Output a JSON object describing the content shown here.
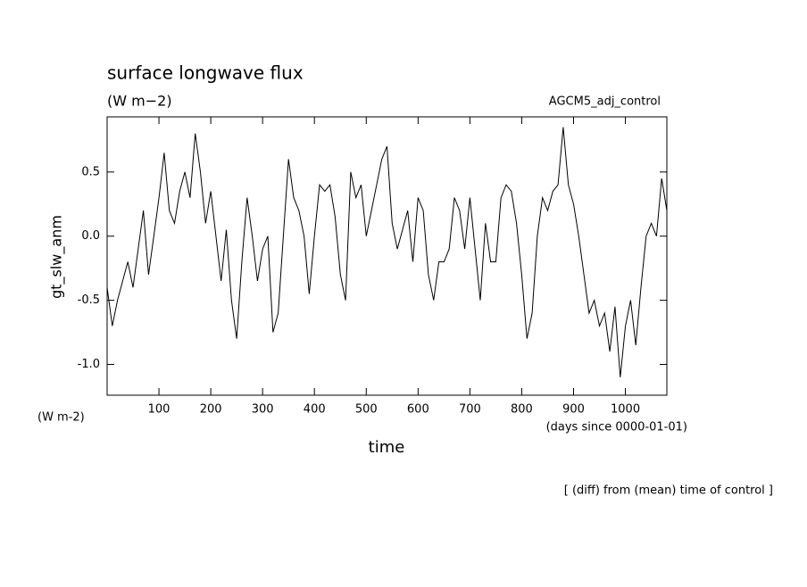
{
  "chart_data": {
    "type": "line",
    "title": "surface longwave flux",
    "subtitle": "(W m−2)",
    "annotation": "AGCM5_adj_control",
    "ylabel": "gt_slw_anm",
    "yunit": "(W m-2)",
    "xunit": "(days since 0000-01-01)",
    "xlabel": "time",
    "footer": "[ (diff) from (mean) time of control ]",
    "color": "#000000",
    "x": [
      0,
      10,
      20,
      30,
      40,
      50,
      60,
      70,
      80,
      90,
      100,
      110,
      120,
      130,
      140,
      150,
      160,
      170,
      180,
      190,
      200,
      210,
      220,
      230,
      240,
      250,
      260,
      270,
      280,
      290,
      300,
      310,
      320,
      330,
      340,
      350,
      360,
      370,
      380,
      390,
      400,
      410,
      420,
      430,
      440,
      450,
      460,
      470,
      480,
      490,
      500,
      510,
      520,
      530,
      540,
      550,
      560,
      570,
      580,
      590,
      600,
      610,
      620,
      630,
      640,
      650,
      660,
      670,
      680,
      690,
      700,
      710,
      720,
      730,
      740,
      750,
      760,
      770,
      780,
      790,
      800,
      810,
      820,
      830,
      840,
      850,
      860,
      870,
      880,
      890,
      900,
      910,
      920,
      930,
      940,
      950,
      960,
      970,
      980,
      990,
      1000,
      1010,
      1020,
      1030,
      1040,
      1050,
      1060,
      1070,
      1080
    ],
    "values": [
      -0.4,
      -0.7,
      -0.5,
      -0.35,
      -0.2,
      -0.4,
      -0.1,
      0.2,
      -0.3,
      0.0,
      0.3,
      0.65,
      0.2,
      0.1,
      0.35,
      0.5,
      0.3,
      0.8,
      0.5,
      0.1,
      0.35,
      0.0,
      -0.35,
      0.05,
      -0.5,
      -0.8,
      -0.2,
      0.3,
      0.0,
      -0.35,
      -0.1,
      0.0,
      -0.75,
      -0.6,
      0.0,
      0.6,
      0.3,
      0.2,
      0.0,
      -0.45,
      0.0,
      0.4,
      0.35,
      0.4,
      0.15,
      -0.3,
      -0.5,
      0.5,
      0.3,
      0.4,
      0.0,
      0.2,
      0.4,
      0.6,
      0.7,
      0.1,
      -0.1,
      0.05,
      0.2,
      -0.2,
      0.3,
      0.2,
      -0.3,
      -0.5,
      -0.2,
      -0.2,
      -0.1,
      0.3,
      0.2,
      -0.1,
      0.3,
      -0.1,
      -0.5,
      0.1,
      -0.2,
      -0.2,
      0.3,
      0.4,
      0.35,
      0.1,
      -0.3,
      -0.8,
      -0.6,
      0.0,
      0.3,
      0.2,
      0.35,
      0.4,
      0.85,
      0.4,
      0.25,
      0.0,
      -0.3,
      -0.6,
      -0.5,
      -0.7,
      -0.6,
      -0.9,
      -0.55,
      -1.1,
      -0.7,
      -0.5,
      -0.85,
      -0.4,
      0.0,
      0.1,
      0.0,
      0.45,
      0.2
    ],
    "xlim": [
      0,
      1080
    ],
    "ylim": [
      -1.24,
      0.93
    ],
    "xticks": [
      100,
      200,
      300,
      400,
      500,
      600,
      700,
      800,
      900,
      1000
    ],
    "yticks": [
      {
        "value": -1,
        "label": "-1.0"
      },
      -0.5,
      {
        "value": 0,
        "label": "0.0"
      },
      0.5
    ]
  }
}
